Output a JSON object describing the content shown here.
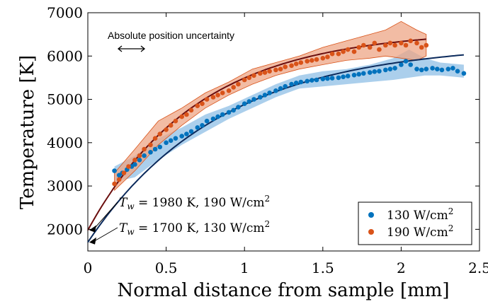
{
  "chart_data": {
    "type": "scatter",
    "xlabel": "Normal distance from sample [mm]",
    "ylabel": "Temperature [K]",
    "xlim": [
      0,
      2.5
    ],
    "ylim": [
      1500,
      7000
    ],
    "x_ticks": [
      0,
      0.5,
      1,
      1.5,
      2,
      2.5
    ],
    "x_tick_labels": [
      "0",
      "0.5",
      "1",
      "1.5",
      "2",
      "2.5"
    ],
    "y_ticks": [
      2000,
      3000,
      4000,
      5000,
      6000,
      7000
    ],
    "y_tick_labels": [
      "2000",
      "3000",
      "4000",
      "5000",
      "6000",
      "7000"
    ],
    "grid": false,
    "legend_position": "bottom-right",
    "annotation_text": "Absolute position uncertainty",
    "wall_annotations": [
      {
        "text_main": "T",
        "text_sub": "w",
        "text_rest": "= 1980 K, 190 W/cm",
        "text_sup": "2",
        "value": 1980,
        "series": "190"
      },
      {
        "text_main": "T",
        "text_sub": "w",
        "text_rest": "= 1700 K, 130 W/cm",
        "text_sup": "2",
        "value": 1700,
        "series": "130"
      }
    ],
    "series": [
      {
        "key": "130",
        "legend_main": "130 W/cm",
        "legend_sup": "2",
        "color": "#0072bd",
        "band_color": "#8fbfe6",
        "fit_color": "#0b2a5c",
        "wall_temperature": 1700,
        "points": [
          [
            0.17,
            3350
          ],
          [
            0.2,
            3250
          ],
          [
            0.22,
            3300
          ],
          [
            0.25,
            3380
          ],
          [
            0.28,
            3450
          ],
          [
            0.3,
            3500
          ],
          [
            0.33,
            3600
          ],
          [
            0.36,
            3700
          ],
          [
            0.4,
            3780
          ],
          [
            0.43,
            3850
          ],
          [
            0.46,
            3900
          ],
          [
            0.5,
            4000
          ],
          [
            0.53,
            4050
          ],
          [
            0.56,
            4100
          ],
          [
            0.6,
            4150
          ],
          [
            0.63,
            4200
          ],
          [
            0.66,
            4260
          ],
          [
            0.7,
            4350
          ],
          [
            0.73,
            4400
          ],
          [
            0.76,
            4500
          ],
          [
            0.8,
            4550
          ],
          [
            0.83,
            4600
          ],
          [
            0.86,
            4650
          ],
          [
            0.9,
            4700
          ],
          [
            0.93,
            4750
          ],
          [
            0.96,
            4820
          ],
          [
            1.0,
            4900
          ],
          [
            1.03,
            4950
          ],
          [
            1.06,
            5000
          ],
          [
            1.1,
            5050
          ],
          [
            1.13,
            5100
          ],
          [
            1.16,
            5150
          ],
          [
            1.2,
            5200
          ],
          [
            1.23,
            5250
          ],
          [
            1.26,
            5300
          ],
          [
            1.3,
            5350
          ],
          [
            1.33,
            5380
          ],
          [
            1.36,
            5400
          ],
          [
            1.4,
            5420
          ],
          [
            1.43,
            5440
          ],
          [
            1.46,
            5450
          ],
          [
            1.5,
            5470
          ],
          [
            1.53,
            5480
          ],
          [
            1.56,
            5490
          ],
          [
            1.6,
            5500
          ],
          [
            1.63,
            5520
          ],
          [
            1.66,
            5540
          ],
          [
            1.7,
            5560
          ],
          [
            1.73,
            5580
          ],
          [
            1.76,
            5600
          ],
          [
            1.8,
            5620
          ],
          [
            1.83,
            5640
          ],
          [
            1.86,
            5650
          ],
          [
            1.9,
            5680
          ],
          [
            1.93,
            5700
          ],
          [
            1.96,
            5720
          ],
          [
            2.0,
            5800
          ],
          [
            2.03,
            5880
          ],
          [
            2.06,
            5800
          ],
          [
            2.1,
            5700
          ],
          [
            2.13,
            5680
          ],
          [
            2.16,
            5700
          ],
          [
            2.2,
            5720
          ],
          [
            2.23,
            5700
          ],
          [
            2.26,
            5680
          ],
          [
            2.3,
            5700
          ],
          [
            2.33,
            5720
          ],
          [
            2.36,
            5650
          ],
          [
            2.4,
            5600
          ]
        ],
        "band": [
          [
            0.17,
            3100,
            3450
          ],
          [
            0.3,
            3200,
            3700
          ],
          [
            0.45,
            3600,
            4100
          ],
          [
            0.6,
            3950,
            4350
          ],
          [
            0.75,
            4250,
            4650
          ],
          [
            0.9,
            4550,
            4850
          ],
          [
            1.05,
            4800,
            5100
          ],
          [
            1.2,
            5050,
            5350
          ],
          [
            1.35,
            5250,
            5550
          ],
          [
            1.5,
            5300,
            5650
          ],
          [
            1.65,
            5350,
            5700
          ],
          [
            1.8,
            5400,
            5800
          ],
          [
            1.95,
            5450,
            5950
          ],
          [
            2.05,
            5500,
            6150
          ],
          [
            2.15,
            5550,
            5950
          ],
          [
            2.25,
            5550,
            5850
          ],
          [
            2.4,
            5500,
            5800
          ]
        ],
        "fit": {
          "T0": 1700,
          "Tinf": 6300,
          "L": 0.85,
          "x_max": 2.4
        }
      },
      {
        "key": "190",
        "legend_main": "190 W/cm",
        "legend_sup": "2",
        "color": "#d95319",
        "band_color": "#eea585",
        "fit_color": "#6a0d0d",
        "wall_temperature": 1980,
        "points": [
          [
            0.17,
            3050
          ],
          [
            0.2,
            3150
          ],
          [
            0.23,
            3300
          ],
          [
            0.26,
            3450
          ],
          [
            0.3,
            3600
          ],
          [
            0.33,
            3700
          ],
          [
            0.36,
            3850
          ],
          [
            0.4,
            3950
          ],
          [
            0.43,
            4100
          ],
          [
            0.46,
            4200
          ],
          [
            0.5,
            4300
          ],
          [
            0.53,
            4400
          ],
          [
            0.56,
            4500
          ],
          [
            0.6,
            4600
          ],
          [
            0.63,
            4650
          ],
          [
            0.66,
            4750
          ],
          [
            0.7,
            4850
          ],
          [
            0.73,
            4900
          ],
          [
            0.76,
            5000
          ],
          [
            0.8,
            5050
          ],
          [
            0.83,
            5100
          ],
          [
            0.86,
            5150
          ],
          [
            0.9,
            5200
          ],
          [
            0.93,
            5280
          ],
          [
            0.96,
            5350
          ],
          [
            1.0,
            5450
          ],
          [
            1.03,
            5500
          ],
          [
            1.06,
            5550
          ],
          [
            1.1,
            5600
          ],
          [
            1.13,
            5620
          ],
          [
            1.16,
            5650
          ],
          [
            1.2,
            5680
          ],
          [
            1.23,
            5700
          ],
          [
            1.26,
            5750
          ],
          [
            1.3,
            5780
          ],
          [
            1.33,
            5820
          ],
          [
            1.36,
            5850
          ],
          [
            1.4,
            5880
          ],
          [
            1.43,
            5900
          ],
          [
            1.46,
            5920
          ],
          [
            1.5,
            5950
          ],
          [
            1.53,
            5980
          ],
          [
            1.56,
            6050
          ],
          [
            1.6,
            6050
          ],
          [
            1.63,
            6100
          ],
          [
            1.66,
            6150
          ],
          [
            1.7,
            6100
          ],
          [
            1.73,
            6200
          ],
          [
            1.76,
            6250
          ],
          [
            1.8,
            6200
          ],
          [
            1.83,
            6300
          ],
          [
            1.86,
            6150
          ],
          [
            1.9,
            6250
          ],
          [
            1.93,
            6300
          ],
          [
            1.96,
            6250
          ],
          [
            2.0,
            6300
          ],
          [
            2.03,
            6250
          ],
          [
            2.06,
            6350
          ],
          [
            2.1,
            6300
          ],
          [
            2.13,
            6200
          ],
          [
            2.16,
            6250
          ]
        ],
        "band": [
          [
            0.17,
            2900,
            3300
          ],
          [
            0.3,
            3350,
            3850
          ],
          [
            0.45,
            3950,
            4500
          ],
          [
            0.6,
            4400,
            4800
          ],
          [
            0.75,
            4800,
            5150
          ],
          [
            0.9,
            5100,
            5400
          ],
          [
            1.05,
            5350,
            5700
          ],
          [
            1.2,
            5550,
            5850
          ],
          [
            1.35,
            5700,
            6000
          ],
          [
            1.5,
            5800,
            6200
          ],
          [
            1.65,
            5900,
            6350
          ],
          [
            1.8,
            5950,
            6500
          ],
          [
            1.9,
            6000,
            6600
          ],
          [
            2.0,
            5950,
            6800
          ],
          [
            2.1,
            5900,
            6600
          ],
          [
            2.16,
            6000,
            6500
          ]
        ],
        "fit": {
          "T0": 1980,
          "Tinf": 6600,
          "L": 0.7,
          "x_max": 2.16
        }
      }
    ]
  }
}
